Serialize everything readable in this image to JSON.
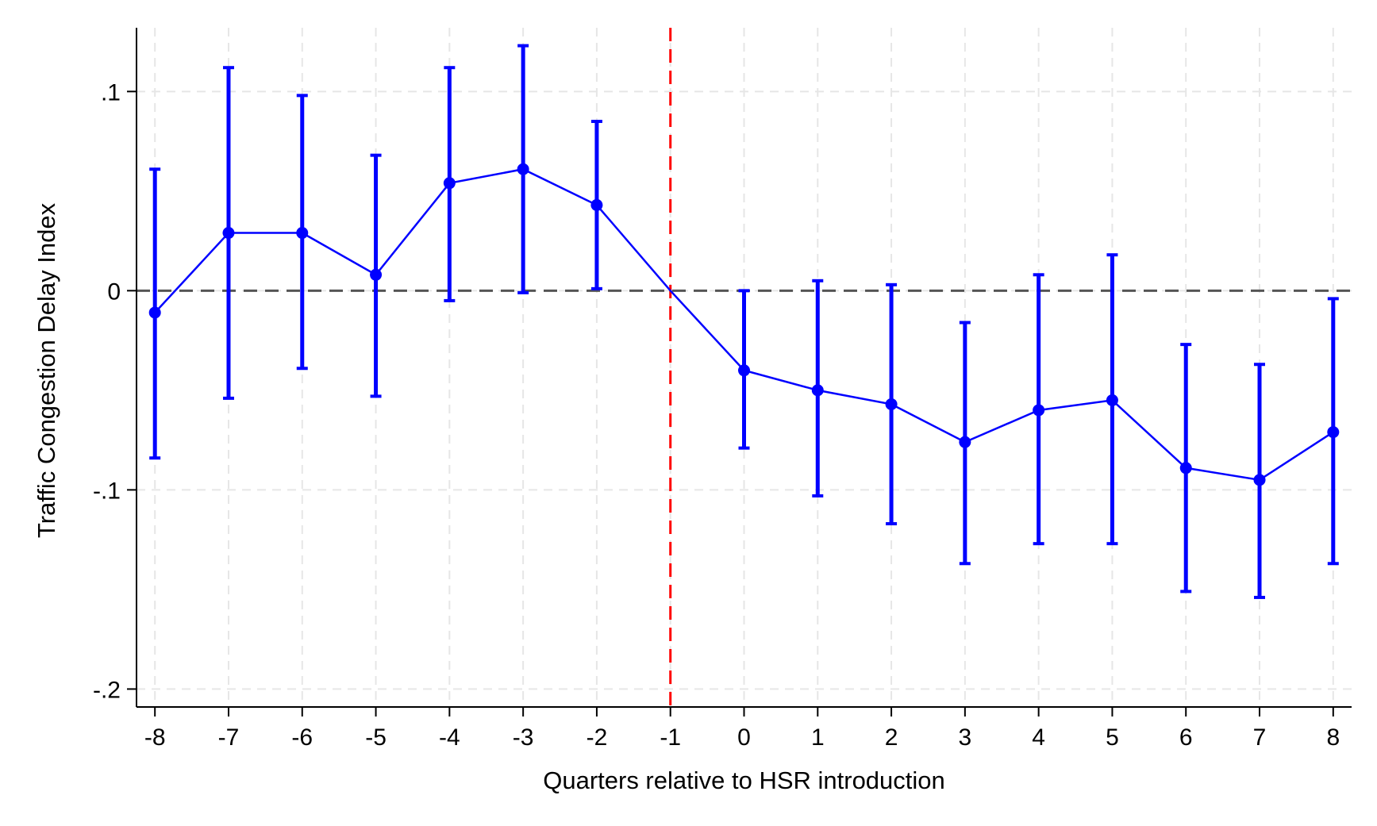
{
  "chart_data": {
    "type": "line",
    "title": "",
    "xlabel": "Quarters relative to HSR introduction",
    "ylabel": "Traffic Congestion Delay Index",
    "x": [
      -8,
      -7,
      -6,
      -5,
      -4,
      -3,
      -2,
      -1,
      0,
      1,
      2,
      3,
      4,
      5,
      6,
      7,
      8
    ],
    "x_tick_labels": [
      "-8",
      "-7",
      "-6",
      "-5",
      "-4",
      "-3",
      "-2",
      "-1",
      "0",
      "1",
      "2",
      "3",
      "4",
      "5",
      "6",
      "7",
      "8"
    ],
    "y_ticks": [
      -0.2,
      -0.1,
      0,
      0.1
    ],
    "y_tick_labels": [
      "-.2",
      "-.1",
      "0",
      ".1"
    ],
    "xlim": [
      -8.25,
      8.25
    ],
    "ylim": [
      -0.209,
      0.132
    ],
    "grid": true,
    "series": [
      {
        "values": [
          -0.011,
          0.029,
          0.029,
          0.008,
          0.054,
          0.061,
          0.043,
          0.0,
          -0.04,
          -0.05,
          -0.057,
          -0.076,
          -0.06,
          -0.055,
          -0.089,
          -0.095,
          -0.071
        ],
        "ci_lower": [
          -0.084,
          -0.054,
          -0.039,
          -0.053,
          -0.005,
          -0.001,
          0.001,
          null,
          -0.079,
          -0.103,
          -0.117,
          -0.137,
          -0.127,
          -0.127,
          -0.151,
          -0.154,
          -0.137
        ],
        "ci_upper": [
          0.061,
          0.112,
          0.098,
          0.068,
          0.112,
          0.123,
          0.085,
          null,
          0.0,
          0.005,
          0.003,
          -0.016,
          0.008,
          0.018,
          -0.027,
          -0.037,
          -0.004
        ],
        "color": "#0000ff"
      }
    ],
    "reference_lines": [
      {
        "axis": "y",
        "value": 0,
        "style": "dashed",
        "color": "#555555"
      },
      {
        "axis": "x",
        "value": -1,
        "style": "dashed",
        "color": "#ff0000"
      }
    ]
  }
}
